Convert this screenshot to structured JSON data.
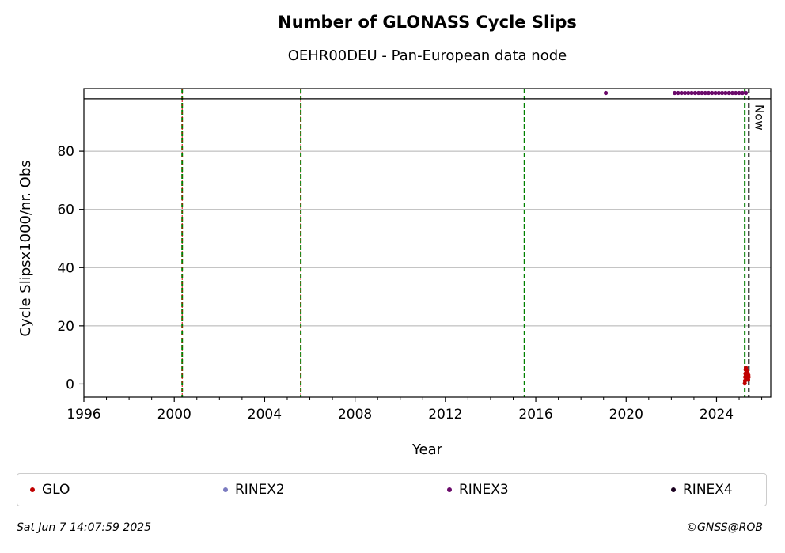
{
  "chart_data": {
    "type": "scatter",
    "title": "Number of GLONASS Cycle Slips",
    "subtitle": "OEHR00DEU - Pan-European data node",
    "xlabel": "Year",
    "ylabel": "Cycle Slipsx1000/nr. Obs",
    "xlim": [
      1996,
      2026.4
    ],
    "ylim": [
      -4.5,
      101.5
    ],
    "xticks": [
      "1996",
      "2000",
      "2004",
      "2008",
      "2012",
      "2016",
      "2020",
      "2024"
    ],
    "yticks": [
      "0",
      "20",
      "40",
      "60",
      "80"
    ],
    "grid": "horizontal",
    "clip_line_y": 98,
    "legend_position": "bottom",
    "vertical_lines": [
      {
        "x": 2000.35,
        "color": "#008000",
        "style": "dashed-red-overlay"
      },
      {
        "x": 2005.6,
        "color": "#008000",
        "style": "dashed-red-overlay"
      },
      {
        "x": 2015.5,
        "color": "#008000",
        "style": "dashed"
      },
      {
        "x": 2025.25,
        "color": "#008000",
        "style": "dashed"
      },
      {
        "x": 2025.43,
        "color": "#000000",
        "style": "dashed",
        "label": "Now"
      }
    ],
    "series": [
      {
        "name": "GLO",
        "color": "#c00000",
        "points": [
          [
            2025.25,
            0.2
          ],
          [
            2025.26,
            1.1
          ],
          [
            2025.27,
            2.4
          ],
          [
            2025.28,
            3.6
          ],
          [
            2025.29,
            4.9
          ],
          [
            2025.3,
            5.6
          ],
          [
            2025.31,
            3.0
          ],
          [
            2025.32,
            1.8
          ],
          [
            2025.33,
            4.1
          ],
          [
            2025.34,
            2.7
          ],
          [
            2025.35,
            3.3
          ],
          [
            2025.36,
            4.5
          ],
          [
            2025.37,
            2.1
          ],
          [
            2025.38,
            3.8
          ],
          [
            2025.39,
            2.9
          ],
          [
            2025.4,
            1.5
          ],
          [
            2025.41,
            3.1
          ],
          [
            2025.42,
            2.4
          ]
        ]
      },
      {
        "name": "RINEX2",
        "color": "#7b7bc0",
        "points": []
      },
      {
        "name": "RINEX3",
        "color": "#6a0a6a",
        "points": [
          [
            2019.1,
            100
          ],
          [
            2022.15,
            100
          ],
          [
            2022.3,
            100
          ],
          [
            2022.45,
            100
          ],
          [
            2022.6,
            100
          ],
          [
            2022.75,
            100
          ],
          [
            2022.9,
            100
          ],
          [
            2023.05,
            100
          ],
          [
            2023.2,
            100
          ],
          [
            2023.35,
            100
          ],
          [
            2023.5,
            100
          ],
          [
            2023.65,
            100
          ],
          [
            2023.8,
            100
          ],
          [
            2023.95,
            100
          ],
          [
            2024.1,
            100
          ],
          [
            2024.25,
            100
          ],
          [
            2024.4,
            100
          ],
          [
            2024.55,
            100
          ],
          [
            2024.7,
            100
          ],
          [
            2024.85,
            100
          ],
          [
            2025.0,
            100
          ],
          [
            2025.15,
            100
          ],
          [
            2025.3,
            100
          ]
        ]
      },
      {
        "name": "RINEX4",
        "color": "#1a0020",
        "points": []
      }
    ]
  },
  "footer": {
    "timestamp": "Sat Jun  7 14:07:59 2025",
    "copyright": "©GNSS@ROB"
  }
}
